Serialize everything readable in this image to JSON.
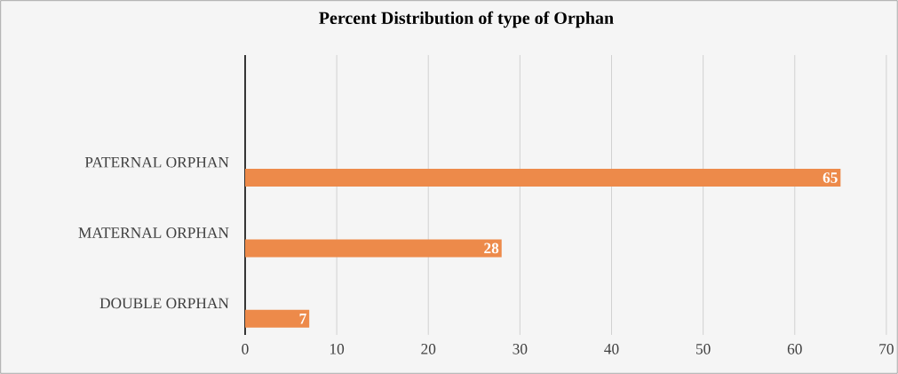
{
  "chart_data": {
    "type": "bar",
    "orientation": "horizontal",
    "title": "Percent Distribution of type of Orphan",
    "categories": [
      "PATERNAL ORPHAN",
      "MATERNAL ORPHAN",
      "DOUBLE ORPHAN"
    ],
    "values": [
      65,
      28,
      7
    ],
    "color": "#ed8a4a",
    "xlim": [
      0,
      70
    ],
    "xticks": [
      0,
      10,
      20,
      30,
      40,
      50,
      60,
      70
    ],
    "grid": "x",
    "data_labels": true
  }
}
